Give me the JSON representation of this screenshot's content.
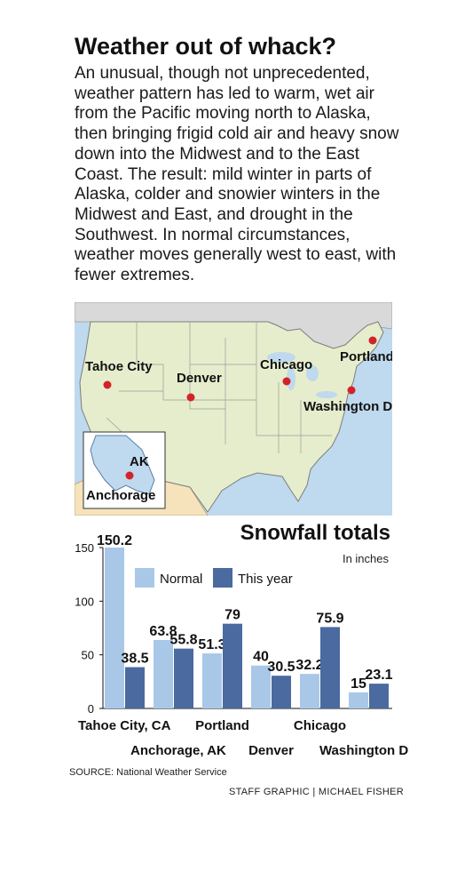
{
  "headline": "Weather out of whack?",
  "intro": "An unusual, though not unprecedented, weather pattern has led to warm, wet air from the Pacific moving north to Alaska, then bringing frigid cold air and heavy snow down into the Midwest and to the East Coast. The result: mild winter in parts of Alaska, colder and snowier winters in the Midwest and East, and drought in the Southwest. In normal circumstances, weather moves generally west to east, with fewer extremes.",
  "map": {
    "cities": [
      "Tahoe City",
      "Denver",
      "Chicago",
      "Portland",
      "Washington DC"
    ],
    "inset_label": "AK",
    "inset_city": "Anchorage",
    "colors": {
      "land": "#e6edcc",
      "water": "#bfd9ee",
      "mexico": "#f6e3bc",
      "canada": "#d9d9d9",
      "marker": "#d2232a"
    }
  },
  "chart_data": {
    "type": "bar",
    "title": "Snowfall totals",
    "subtitle": "In inches",
    "categories": [
      "Tahoe City, CA",
      "Anchorage, AK",
      "Portland",
      "Denver",
      "Chicago",
      "Washington DC"
    ],
    "series": [
      {
        "name": "Normal",
        "values": [
          150.2,
          63.8,
          51.3,
          40,
          32.2,
          15
        ],
        "color": "#a9c8e8"
      },
      {
        "name": "This year",
        "values": [
          38.5,
          55.8,
          79,
          30.5,
          75.9,
          23.1
        ],
        "color": "#4a6aa0"
      }
    ],
    "value_labels": [
      [
        "150.2",
        "38.5"
      ],
      [
        "63.8",
        "55.8"
      ],
      [
        "51.3",
        "79"
      ],
      [
        "40",
        "30.5"
      ],
      [
        "32.2",
        "75.9"
      ],
      [
        "15",
        "23.1"
      ]
    ],
    "ylim": [
      0,
      150
    ],
    "yticks": [
      0,
      50,
      100,
      150
    ],
    "ytick_labels": [
      "0",
      "50",
      "100",
      "150"
    ],
    "legend_position": "top-left",
    "grid": false
  },
  "source": "SOURCE: National Weather Service",
  "credit": "STAFF GRAPHIC | MICHAEL FISHER"
}
